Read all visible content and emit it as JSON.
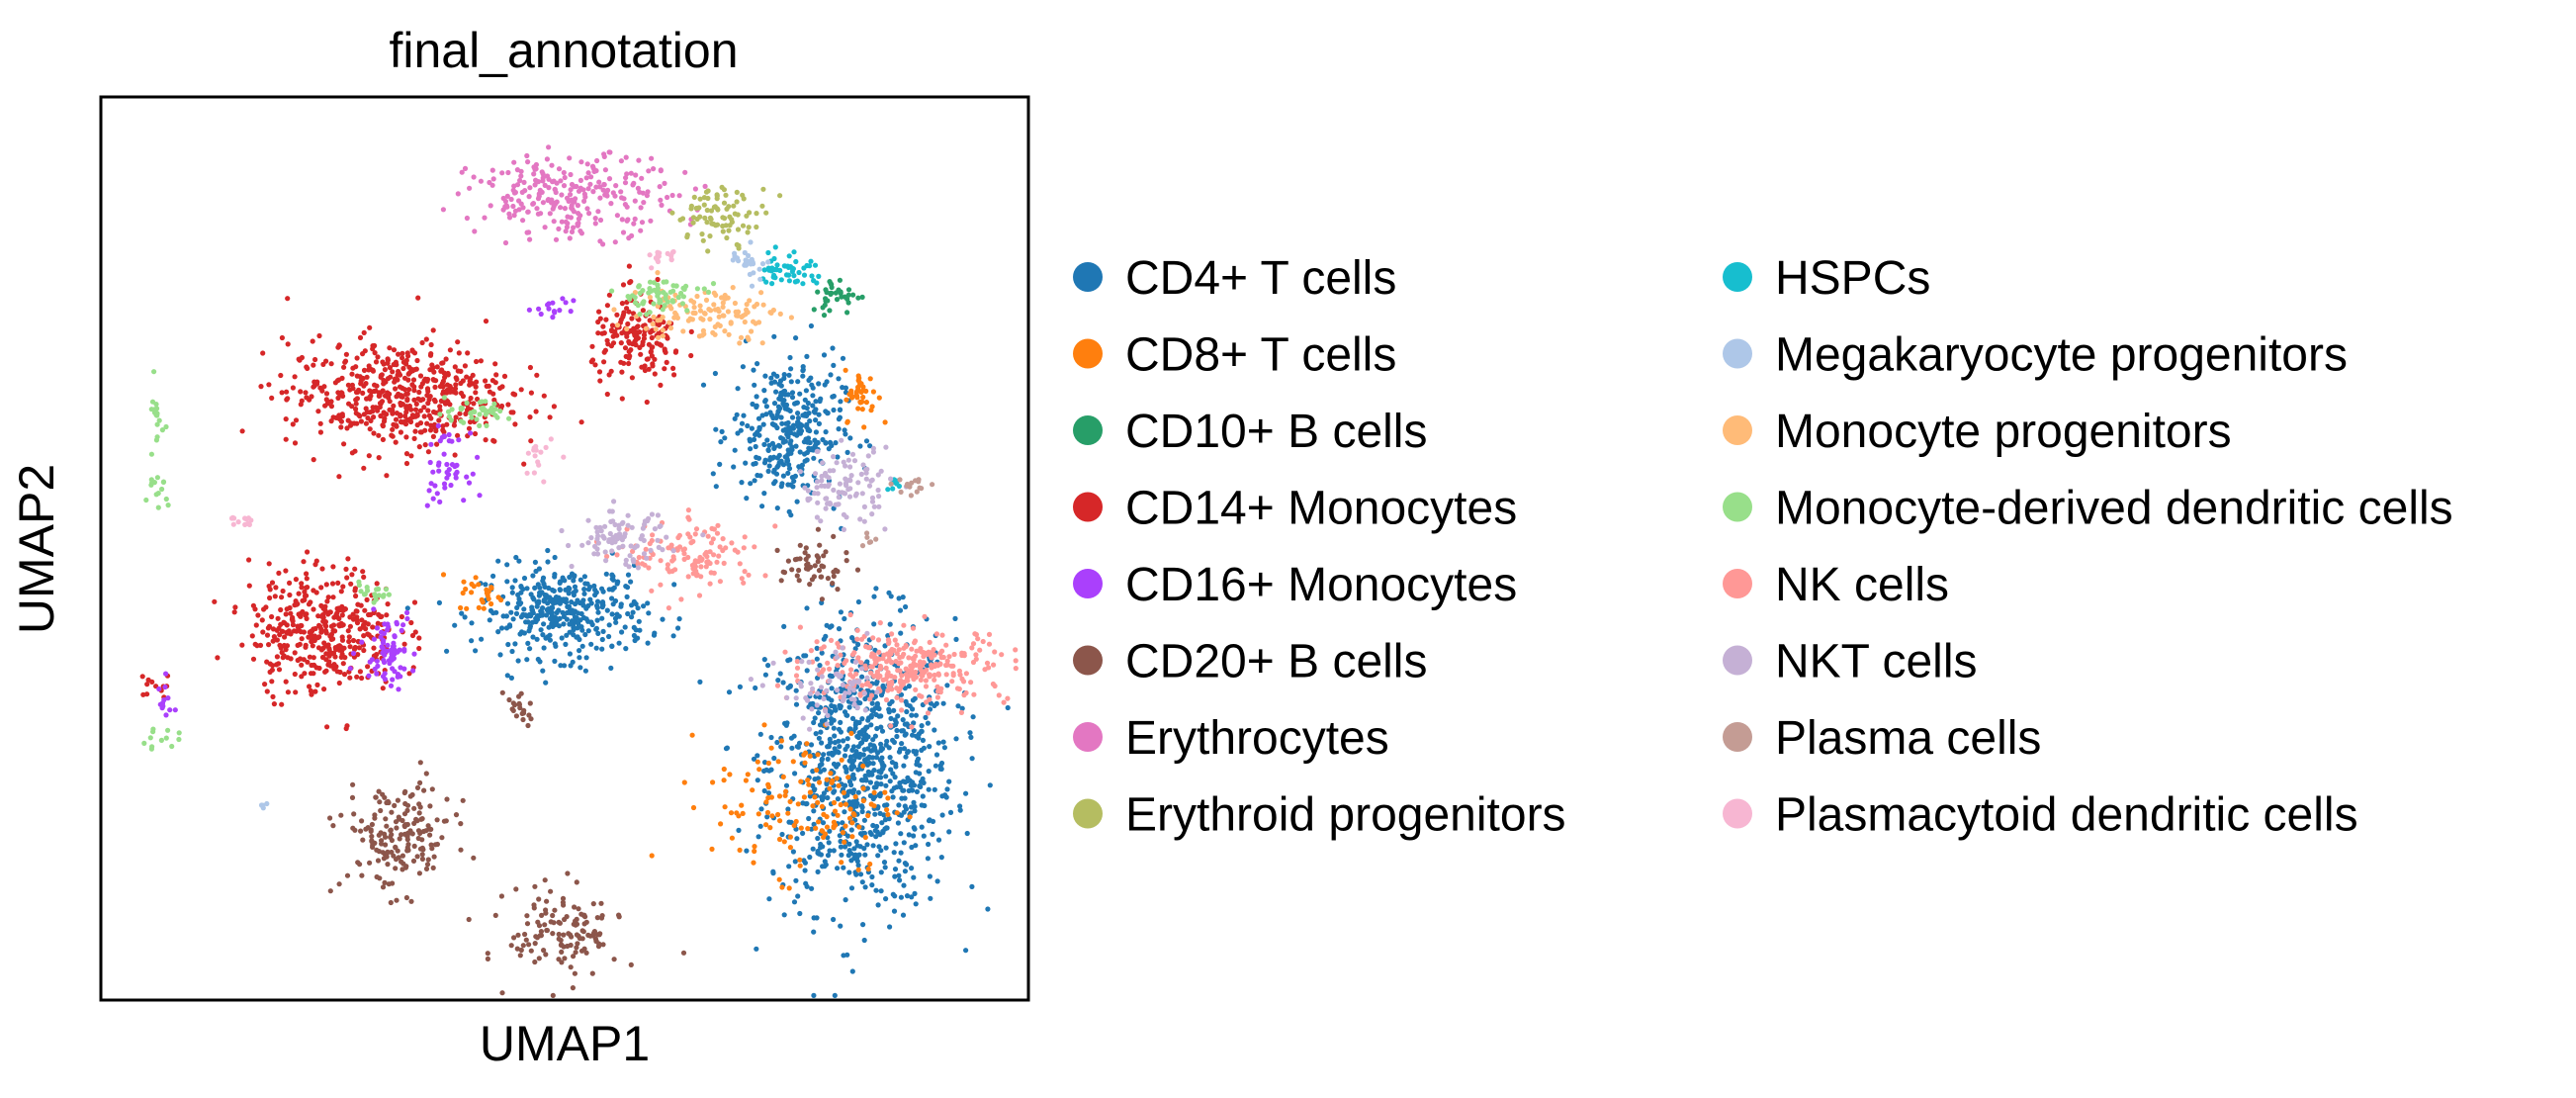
{
  "chart_data": {
    "type": "scatter",
    "title": "final_annotation",
    "xlabel": "UMAP1",
    "ylabel": "UMAP2",
    "x_ticks": false,
    "y_ticks": false,
    "grid": false,
    "xlim": [
      0,
      100
    ],
    "ylim": [
      0,
      100
    ],
    "legend": {
      "placement": "right",
      "columns": 2
    },
    "series": [
      {
        "name": "CD4+ T cells",
        "color": "#1f77b4",
        "clusters": [
          {
            "x": 82,
            "y": 26,
            "sx": 5,
            "sy": 8,
            "n": 900
          },
          {
            "x": 50,
            "y": 43,
            "sx": 4.5,
            "sy": 2.5,
            "n": 380
          },
          {
            "x": 74,
            "y": 63,
            "sx": 3,
            "sy": 4,
            "n": 330
          }
        ]
      },
      {
        "name": "CD8+ T cells",
        "color": "#ff7f0e",
        "clusters": [
          {
            "x": 76,
            "y": 22,
            "sx": 5,
            "sy": 4,
            "n": 140
          },
          {
            "x": 82,
            "y": 67,
            "sx": 0.9,
            "sy": 1.4,
            "n": 40
          },
          {
            "x": 41,
            "y": 45,
            "sx": 1.2,
            "sy": 1,
            "n": 25
          }
        ]
      },
      {
        "name": "CD10+ B cells",
        "color": "#279e68",
        "clusters": [
          {
            "x": 79.5,
            "y": 78,
            "sx": 1.5,
            "sy": 1,
            "n": 35
          }
        ]
      },
      {
        "name": "CD14+ Monocytes",
        "color": "#d62728",
        "clusters": [
          {
            "x": 32,
            "y": 67,
            "sx": 6,
            "sy": 3,
            "n": 520
          },
          {
            "x": 24,
            "y": 41,
            "sx": 4,
            "sy": 3.5,
            "n": 400
          },
          {
            "x": 58,
            "y": 73,
            "sx": 2.5,
            "sy": 2.5,
            "n": 170
          },
          {
            "x": 6,
            "y": 35,
            "sx": 1,
            "sy": 0.8,
            "n": 12
          }
        ]
      },
      {
        "name": "CD16+ Monocytes",
        "color": "#aa40fc",
        "clusters": [
          {
            "x": 31,
            "y": 39,
            "sx": 1.5,
            "sy": 2,
            "n": 70
          },
          {
            "x": 37,
            "y": 59,
            "sx": 1.2,
            "sy": 1.8,
            "n": 45
          },
          {
            "x": 49,
            "y": 76.5,
            "sx": 1,
            "sy": 0.5,
            "n": 15
          },
          {
            "x": 7,
            "y": 33,
            "sx": 0.5,
            "sy": 1.5,
            "n": 12
          }
        ]
      },
      {
        "name": "CD20+ B cells",
        "color": "#8c564b",
        "clusters": [
          {
            "x": 32,
            "y": 18,
            "sx": 3,
            "sy": 3,
            "n": 180
          },
          {
            "x": 50,
            "y": 7.5,
            "sx": 3,
            "sy": 2.5,
            "n": 130
          },
          {
            "x": 77,
            "y": 48,
            "sx": 1.8,
            "sy": 1.5,
            "n": 50
          },
          {
            "x": 45,
            "y": 32,
            "sx": 0.8,
            "sy": 1.5,
            "n": 20
          }
        ]
      },
      {
        "name": "Erythrocytes",
        "color": "#e377c2",
        "clusters": [
          {
            "x": 51,
            "y": 89,
            "sx": 5.5,
            "sy": 2.2,
            "n": 260
          }
        ]
      },
      {
        "name": "Erythroid progenitors",
        "color": "#b5bd61",
        "clusters": [
          {
            "x": 67,
            "y": 87,
            "sx": 2.5,
            "sy": 1.5,
            "n": 80
          }
        ]
      },
      {
        "name": "HSPCs",
        "color": "#17becf",
        "clusters": [
          {
            "x": 74,
            "y": 81,
            "sx": 1.5,
            "sy": 1,
            "n": 50
          },
          {
            "x": 85.5,
            "y": 57,
            "sx": 0.6,
            "sy": 0.5,
            "n": 8
          }
        ]
      },
      {
        "name": "Megakaryocyte progenitors",
        "color": "#aec7e8",
        "clusters": [
          {
            "x": 70,
            "y": 82,
            "sx": 1,
            "sy": 1,
            "n": 25
          },
          {
            "x": 17.5,
            "y": 21.5,
            "sx": 0.3,
            "sy": 0.3,
            "n": 4
          }
        ]
      },
      {
        "name": "Monocyte progenitors",
        "color": "#ffbb78",
        "clusters": [
          {
            "x": 65,
            "y": 76,
            "sx": 4,
            "sy": 1.5,
            "n": 120
          }
        ]
      },
      {
        "name": "Monocyte-derived dendritic cells",
        "color": "#98df8a",
        "clusters": [
          {
            "x": 60,
            "y": 78,
            "sx": 2.5,
            "sy": 1,
            "n": 60
          },
          {
            "x": 40,
            "y": 65,
            "sx": 2,
            "sy": 0.6,
            "n": 40
          },
          {
            "x": 6,
            "y": 64,
            "sx": 0.5,
            "sy": 2,
            "n": 18
          },
          {
            "x": 6,
            "y": 56,
            "sx": 0.6,
            "sy": 1,
            "n": 14
          },
          {
            "x": 29,
            "y": 45,
            "sx": 1.2,
            "sy": 0.5,
            "n": 18
          },
          {
            "x": 6,
            "y": 29,
            "sx": 1.2,
            "sy": 0.5,
            "n": 12
          }
        ]
      },
      {
        "name": "NK cells",
        "color": "#ff9896",
        "clusters": [
          {
            "x": 87,
            "y": 37,
            "sx": 5.5,
            "sy": 2,
            "n": 300
          },
          {
            "x": 64,
            "y": 49,
            "sx": 3.5,
            "sy": 2,
            "n": 120
          }
        ]
      },
      {
        "name": "NKT cells",
        "color": "#c5b0d5",
        "clusters": [
          {
            "x": 80,
            "y": 57,
            "sx": 2.5,
            "sy": 2,
            "n": 100
          },
          {
            "x": 56,
            "y": 51,
            "sx": 2.5,
            "sy": 1.5,
            "n": 90
          },
          {
            "x": 79,
            "y": 34,
            "sx": 3,
            "sy": 2,
            "n": 60
          }
        ]
      },
      {
        "name": "Plasma cells",
        "color": "#c49c94",
        "clusters": [
          {
            "x": 87.5,
            "y": 57,
            "sx": 1,
            "sy": 0.5,
            "n": 15
          },
          {
            "x": 83,
            "y": 51,
            "sx": 0.4,
            "sy": 0.4,
            "n": 6
          }
        ]
      },
      {
        "name": "Plasmacytoid dendritic cells",
        "color": "#f7b6d2",
        "clusters": [
          {
            "x": 15,
            "y": 53,
            "sx": 1,
            "sy": 0.5,
            "n": 12
          },
          {
            "x": 47,
            "y": 60,
            "sx": 0.8,
            "sy": 1.5,
            "n": 15
          },
          {
            "x": 61,
            "y": 82,
            "sx": 1,
            "sy": 0.5,
            "n": 15
          }
        ]
      }
    ]
  }
}
